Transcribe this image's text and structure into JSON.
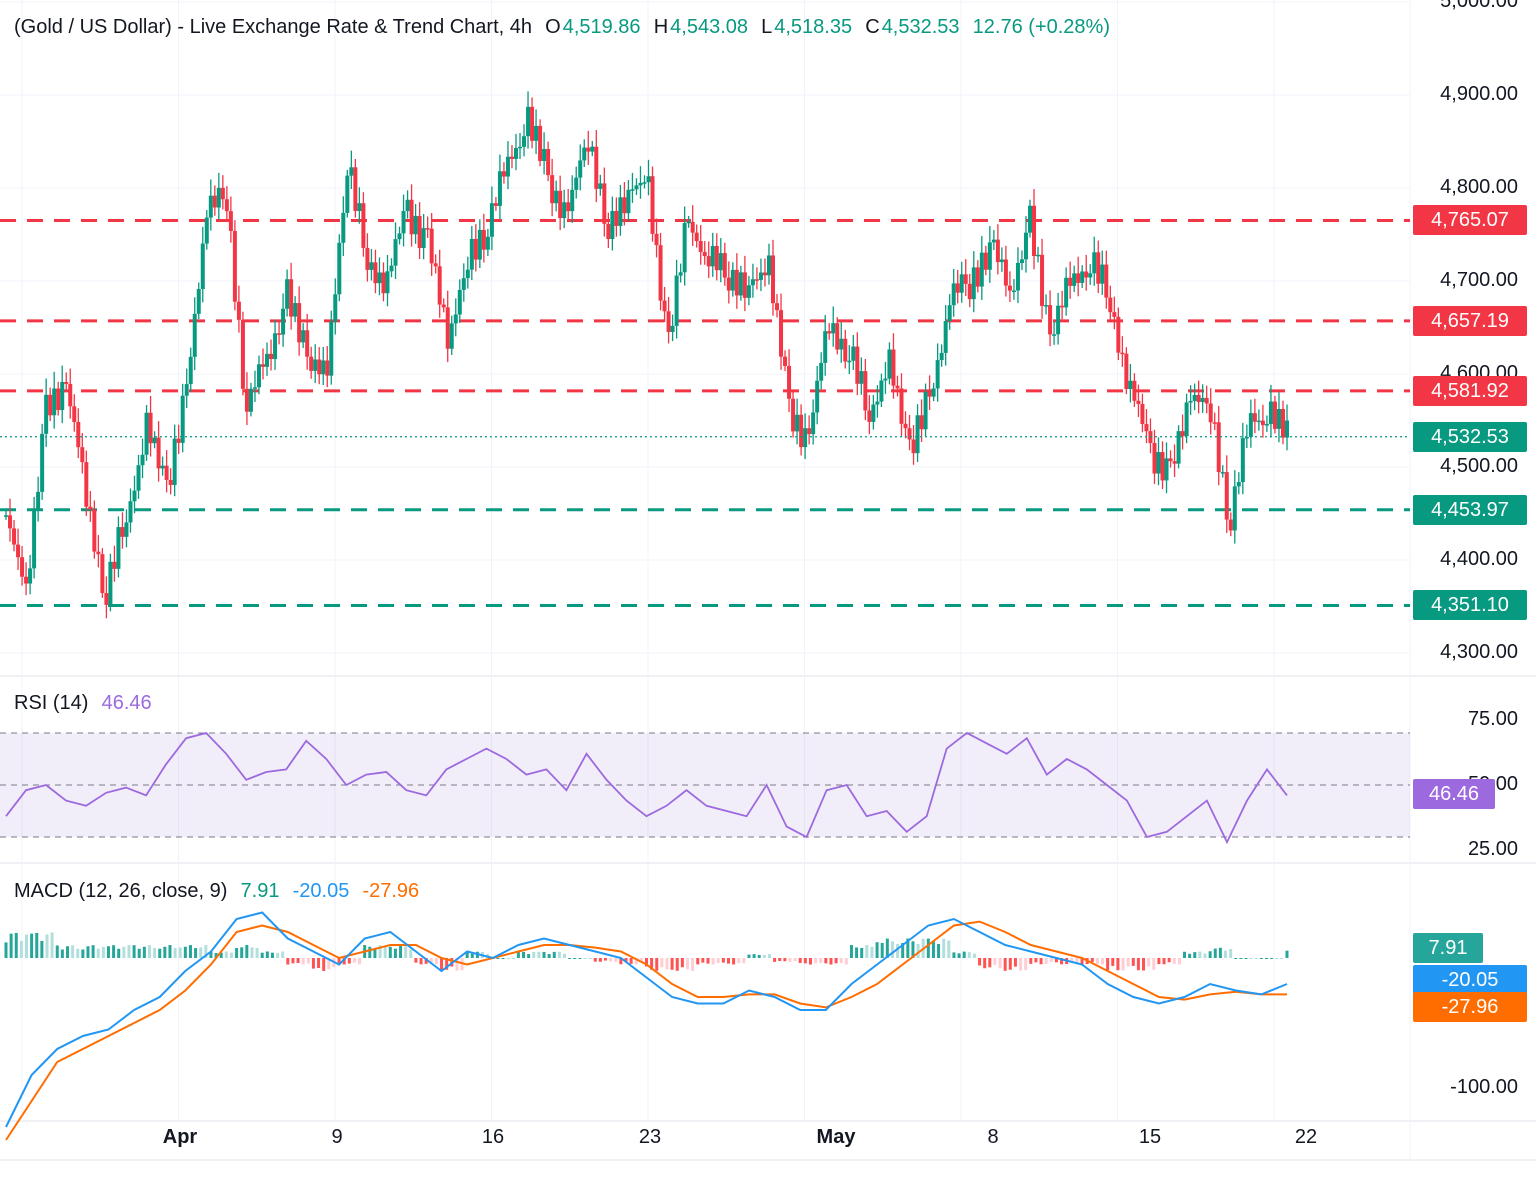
{
  "legend": {
    "title": "(Gold / US Dollar) - Live Exchange Rate & Trend Chart, 4h",
    "o_label": "O",
    "o_value": "4,519.86",
    "h_label": "H",
    "h_value": "4,543.08",
    "l_label": "L",
    "l_value": "4,518.35",
    "c_label": "C",
    "c_value": "4,532.53",
    "change": "12.76 (+0.28%)"
  },
  "rsi_legend": {
    "label": "RSI (14)",
    "value": "46.46"
  },
  "macd_legend": {
    "label": "MACD (12, 26, close, 9)",
    "hist": "7.91",
    "macd": "-20.05",
    "signal": "-27.96"
  },
  "colors": {
    "up": "#089981",
    "down": "#f23645",
    "rsi": "#9c6ade",
    "macd": "#2196f3",
    "signal": "#ff6d00"
  },
  "chart_data": {
    "type": "candlestick",
    "title": "(Gold / US Dollar) - Live Exchange Rate & Trend Chart, 4h",
    "price_axis": {
      "ticks": [
        "5,000.00",
        "4,900.00",
        "4,800.00",
        "4,700.00",
        "4,600.00",
        "4,500.00",
        "4,400.00",
        "4,300.00"
      ],
      "ylim": [
        4270,
        5010
      ]
    },
    "x_ticks": [
      "Apr",
      "9",
      "16",
      "23",
      "May",
      "8",
      "15",
      "22"
    ],
    "last_price": "4,532.53",
    "horizontal_levels": [
      {
        "value": 4765.07,
        "label": "4,765.07",
        "kind": "resistance"
      },
      {
        "value": 4657.19,
        "label": "4,657.19",
        "kind": "resistance"
      },
      {
        "value": 4581.92,
        "label": "4,581.92",
        "kind": "resistance"
      },
      {
        "value": 4453.97,
        "label": "4,453.97",
        "kind": "support"
      },
      {
        "value": 4351.1,
        "label": "4,351.10",
        "kind": "support"
      }
    ],
    "price_path": [
      4440,
      4370,
      4560,
      4590,
      4470,
      4360,
      4450,
      4540,
      4480,
      4580,
      4780,
      4790,
      4560,
      4620,
      4680,
      4620,
      4600,
      4830,
      4720,
      4700,
      4780,
      4740,
      4640,
      4720,
      4760,
      4830,
      4870,
      4810,
      4770,
      4860,
      4750,
      4800,
      4800,
      4630,
      4770,
      4720,
      4710,
      4690,
      4720,
      4560,
      4530,
      4660,
      4620,
      4560,
      4610,
      4520,
      4570,
      4680,
      4700,
      4740,
      4690,
      4760,
      4640,
      4700,
      4720,
      4680,
      4580,
      4520,
      4490,
      4580,
      4560,
      4440,
      4560,
      4550,
      4530
    ],
    "rsi": {
      "label": "RSI (14)",
      "value": 46.46,
      "ticks": [
        "75.00",
        "50.00",
        "25.00"
      ],
      "ylim": [
        20,
        80
      ],
      "upper": 70,
      "mid": 50,
      "lower": 30,
      "series": [
        38,
        48,
        50,
        44,
        42,
        47,
        49,
        46,
        58,
        68,
        70,
        62,
        52,
        55,
        56,
        67,
        60,
        50,
        54,
        55,
        48,
        46,
        56,
        60,
        64,
        60,
        54,
        56,
        48,
        62,
        52,
        44,
        38,
        42,
        48,
        42,
        40,
        38,
        50,
        34,
        30,
        48,
        50,
        38,
        40,
        32,
        38,
        64,
        70,
        66,
        62,
        68,
        54,
        60,
        56,
        50,
        44,
        30,
        32,
        38,
        44,
        28,
        44,
        56,
        46
      ]
    },
    "macd": {
      "label": "MACD (12, 26, close, 9)",
      "hist_value": 7.91,
      "macd_value": -20.05,
      "signal_value": -27.96,
      "ticks": [
        "-100.00"
      ],
      "ylim": [
        -140,
        40
      ],
      "macd_line": [
        -130,
        -90,
        -70,
        -60,
        -55,
        -40,
        -30,
        -10,
        5,
        30,
        35,
        15,
        5,
        -5,
        15,
        20,
        5,
        -10,
        5,
        0,
        10,
        15,
        10,
        5,
        0,
        -15,
        -30,
        -35,
        -35,
        -25,
        -30,
        -40,
        -40,
        -20,
        -5,
        10,
        25,
        30,
        20,
        10,
        5,
        0,
        -5,
        -20,
        -30,
        -35,
        -30,
        -20,
        -25,
        -28,
        -20
      ],
      "signal_line": [
        -140,
        -110,
        -80,
        -70,
        -60,
        -50,
        -40,
        -25,
        -5,
        20,
        25,
        20,
        10,
        0,
        5,
        10,
        10,
        0,
        -5,
        0,
        5,
        10,
        10,
        8,
        5,
        -5,
        -20,
        -30,
        -30,
        -28,
        -28,
        -35,
        -38,
        -30,
        -20,
        -5,
        10,
        25,
        28,
        20,
        10,
        5,
        0,
        -10,
        -20,
        -30,
        -32,
        -28,
        -26,
        -28,
        -28
      ],
      "histogram": [
        20,
        20,
        10,
        10,
        10,
        10,
        10,
        10,
        5,
        10,
        5,
        -5,
        -10,
        -5,
        10,
        10,
        -5,
        -10,
        5,
        0,
        5,
        5,
        0,
        -3,
        -5,
        -10,
        -10,
        -5,
        -5,
        3,
        -3,
        -5,
        -5,
        10,
        15,
        15,
        15,
        5,
        -8,
        -10,
        -5,
        -5,
        -5,
        -10,
        -10,
        -5,
        5,
        8,
        0,
        0,
        8
      ]
    }
  }
}
